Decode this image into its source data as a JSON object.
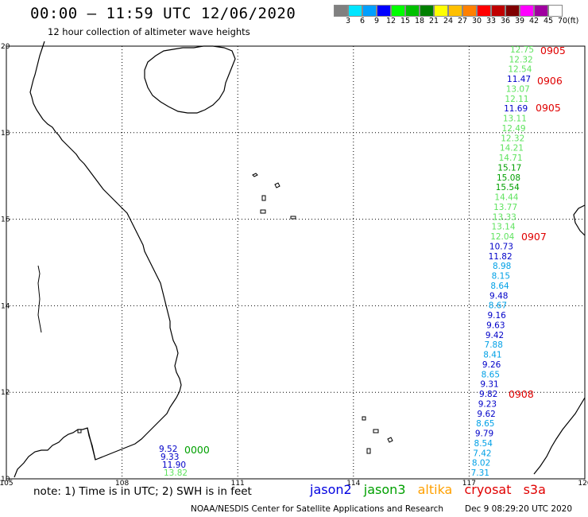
{
  "header": {
    "title": "00:00 – 11:59 UTC 12/06/2020",
    "subtitle": "12 hour collection of altimeter wave heights"
  },
  "colorbar": {
    "labels": [
      "3",
      "6",
      "9",
      "12",
      "15",
      "18",
      "21",
      "24",
      "27",
      "30",
      "33",
      "36",
      "39",
      "42",
      "45",
      "70"
    ],
    "unit": "(ft)",
    "colors": [
      "#808080",
      "#00e5ff",
      "#00a0ff",
      "#0000ff",
      "#00ff00",
      "#00c000",
      "#008000",
      "#ffff00",
      "#ffc000",
      "#ff8000",
      "#ff0000",
      "#c00000",
      "#800000",
      "#ff00ff",
      "#a000a0",
      "#ffffff"
    ]
  },
  "axes": {
    "lon_labels": [
      "105",
      "108",
      "111",
      "114",
      "117",
      "120"
    ],
    "lat_labels": [
      "20",
      "18",
      "16",
      "14",
      "12",
      "10"
    ]
  },
  "tracks": {
    "east": [
      {
        "value": "12.75",
        "color": "#5ee35e"
      },
      {
        "value": "12.32",
        "color": "#5ee35e"
      },
      {
        "value": "12.54",
        "color": "#5ee35e"
      },
      {
        "value": "11.47",
        "color": "#0000c8"
      },
      {
        "value": "13.07",
        "color": "#5ee35e"
      },
      {
        "value": "12.11",
        "color": "#5ee35e"
      },
      {
        "value": "11.69",
        "color": "#0000c8"
      },
      {
        "value": "13.11",
        "color": "#5ee35e"
      },
      {
        "value": "12.49",
        "color": "#5ee35e"
      },
      {
        "value": "12.32",
        "color": "#5ee35e"
      },
      {
        "value": "14.21",
        "color": "#5ee35e"
      },
      {
        "value": "14.71",
        "color": "#5ee35e"
      },
      {
        "value": "15.17",
        "color": "#00a000"
      },
      {
        "value": "15.08",
        "color": "#00a000"
      },
      {
        "value": "15.54",
        "color": "#00a000"
      },
      {
        "value": "14.44",
        "color": "#5ee35e"
      },
      {
        "value": "13.77",
        "color": "#5ee35e"
      },
      {
        "value": "13.33",
        "color": "#5ee35e"
      },
      {
        "value": "13.14",
        "color": "#5ee35e"
      },
      {
        "value": "12.04",
        "color": "#5ee35e"
      },
      {
        "value": "10.73",
        "color": "#0000c8"
      },
      {
        "value": "11.82",
        "color": "#0000c8"
      },
      {
        "value": "8.98",
        "color": "#00a0e6"
      },
      {
        "value": "8.15",
        "color": "#00a0e6"
      },
      {
        "value": "8.64",
        "color": "#00a0e6"
      },
      {
        "value": "9.48",
        "color": "#0000c8"
      },
      {
        "value": "8.67",
        "color": "#00a0e6"
      },
      {
        "value": "9.16",
        "color": "#0000c8"
      },
      {
        "value": "9.63",
        "color": "#0000c8"
      },
      {
        "value": "9.42",
        "color": "#0000c8"
      },
      {
        "value": "7.88",
        "color": "#00a0e6"
      },
      {
        "value": "8.41",
        "color": "#00a0e6"
      },
      {
        "value": "9.26",
        "color": "#0000c8"
      },
      {
        "value": "8.65",
        "color": "#00a0e6"
      },
      {
        "value": "9.31",
        "color": "#0000c8"
      },
      {
        "value": "9.82",
        "color": "#0000c8"
      },
      {
        "value": "9.23",
        "color": "#0000c8"
      },
      {
        "value": "9.62",
        "color": "#0000c8"
      },
      {
        "value": "8.65",
        "color": "#00a0e6"
      },
      {
        "value": "9.79",
        "color": "#0000c8"
      },
      {
        "value": "8.54",
        "color": "#00a0e6"
      },
      {
        "value": "7.42",
        "color": "#00a0e6"
      },
      {
        "value": "8.02",
        "color": "#00a0e6"
      },
      {
        "value": "7.31",
        "color": "#00a0e6"
      }
    ],
    "west": [
      {
        "value": "9.52",
        "color": "#0000c8"
      },
      {
        "value": "9.33",
        "color": "#0000c8"
      },
      {
        "value": "11.90",
        "color": "#0000c8"
      },
      {
        "value": "13.82",
        "color": "#5ee35e"
      }
    ],
    "time_labels": [
      {
        "text": "0905",
        "color": "#e00000"
      },
      {
        "text": "0906",
        "color": "#e00000"
      },
      {
        "text": "0905",
        "color": "#e00000"
      },
      {
        "text": "0907",
        "color": "#e00000"
      },
      {
        "text": "0908",
        "color": "#e00000"
      },
      {
        "text": "0000",
        "color": "#00a000"
      }
    ]
  },
  "footer": {
    "note": "note: 1) Time is in UTC; 2) SWH is in feet",
    "satellites": [
      {
        "name": "jason2",
        "color": "#0000e0"
      },
      {
        "name": "jason3",
        "color": "#00a000"
      },
      {
        "name": "altika",
        "color": "#ffa000"
      },
      {
        "name": "cryosat",
        "color": "#e00000"
      },
      {
        "name": "s3a",
        "color": "#e00000"
      }
    ],
    "credit": "NOAA/NESDIS Center for Satellite Applications and Research",
    "date": "Dec  9 08:29:20 UTC 2020"
  }
}
